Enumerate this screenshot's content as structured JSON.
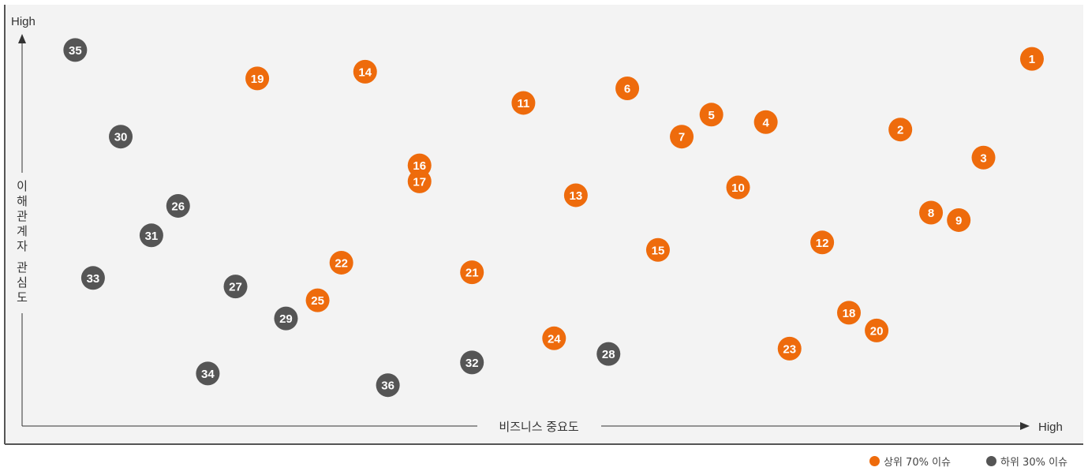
{
  "chart_data": {
    "type": "scatter",
    "xlabel": "비즈니스 중요도",
    "ylabel": "이해관계자 관심도",
    "xmax_label": "High",
    "ymax_label": "High",
    "xlim": [
      0,
      100
    ],
    "ylim": [
      0,
      100
    ],
    "grid": false,
    "legend_position": "bottom-right",
    "series": [
      {
        "name": "상위 70% 이슈",
        "color": "#EE6B0C",
        "points": [
          {
            "id": "1",
            "x": 99.2,
            "y": 96.3
          },
          {
            "id": "2",
            "x": 85.9,
            "y": 76.4
          },
          {
            "id": "3",
            "x": 94.3,
            "y": 68.5
          },
          {
            "id": "4",
            "x": 72.3,
            "y": 78.5
          },
          {
            "id": "5",
            "x": 66.8,
            "y": 80.6
          },
          {
            "id": "6",
            "x": 58.3,
            "y": 88.0
          },
          {
            "id": "7",
            "x": 63.8,
            "y": 74.4
          },
          {
            "id": "8",
            "x": 89.0,
            "y": 53.0
          },
          {
            "id": "9",
            "x": 91.8,
            "y": 50.9
          },
          {
            "id": "10",
            "x": 69.5,
            "y": 60.1
          },
          {
            "id": "11",
            "x": 47.8,
            "y": 83.9
          },
          {
            "id": "12",
            "x": 78.0,
            "y": 44.6
          },
          {
            "id": "13",
            "x": 53.1,
            "y": 57.9
          },
          {
            "id": "14",
            "x": 31.8,
            "y": 92.7
          },
          {
            "id": "15",
            "x": 61.4,
            "y": 42.5
          },
          {
            "id": "16",
            "x": 37.3,
            "y": 66.3
          },
          {
            "id": "17",
            "x": 37.3,
            "y": 61.8
          },
          {
            "id": "18",
            "x": 80.7,
            "y": 24.8
          },
          {
            "id": "19",
            "x": 20.9,
            "y": 90.8
          },
          {
            "id": "20",
            "x": 83.5,
            "y": 19.8
          },
          {
            "id": "21",
            "x": 42.6,
            "y": 36.2
          },
          {
            "id": "22",
            "x": 29.4,
            "y": 38.9
          },
          {
            "id": "23",
            "x": 74.7,
            "y": 14.7
          },
          {
            "id": "24",
            "x": 50.9,
            "y": 17.6
          },
          {
            "id": "25",
            "x": 27.0,
            "y": 28.3
          }
        ]
      },
      {
        "name": "하위 30% 이슈",
        "color": "#555555",
        "points": [
          {
            "id": "26",
            "x": 12.9,
            "y": 54.9
          },
          {
            "id": "27",
            "x": 18.7,
            "y": 32.2
          },
          {
            "id": "28",
            "x": 56.4,
            "y": 13.2
          },
          {
            "id": "29",
            "x": 23.8,
            "y": 23.2
          },
          {
            "id": "30",
            "x": 7.1,
            "y": 74.4
          },
          {
            "id": "31",
            "x": 10.2,
            "y": 46.6
          },
          {
            "id": "32",
            "x": 42.6,
            "y": 10.8
          },
          {
            "id": "33",
            "x": 4.3,
            "y": 34.6
          },
          {
            "id": "34",
            "x": 15.9,
            "y": 7.7
          },
          {
            "id": "35",
            "x": 2.5,
            "y": 98.8
          },
          {
            "id": "36",
            "x": 34.1,
            "y": 4.4
          }
        ]
      }
    ]
  }
}
